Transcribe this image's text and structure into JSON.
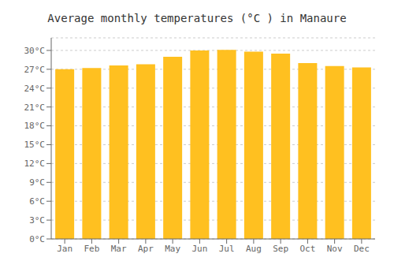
{
  "chart_data": {
    "type": "bar",
    "title": "Average monthly temperatures (°C ) in Manaure",
    "categories": [
      "Jan",
      "Feb",
      "Mar",
      "Apr",
      "May",
      "Jun",
      "Jul",
      "Aug",
      "Sep",
      "Oct",
      "Nov",
      "Dec"
    ],
    "values": [
      27.0,
      27.2,
      27.6,
      27.8,
      29.0,
      30.0,
      30.1,
      29.8,
      29.5,
      28.0,
      27.5,
      27.3
    ],
    "color": "#FFC020",
    "ylim": [
      0,
      32
    ],
    "yticks": [
      {
        "value": 0,
        "label": "0°C"
      },
      {
        "value": 3,
        "label": "3°C"
      },
      {
        "value": 6,
        "label": "6°C"
      },
      {
        "value": 9,
        "label": "9°C"
      },
      {
        "value": 12,
        "label": "12°C"
      },
      {
        "value": 15,
        "label": "15°C"
      },
      {
        "value": 18,
        "label": "18°C"
      },
      {
        "value": 21,
        "label": "21°C"
      },
      {
        "value": 24,
        "label": "24°C"
      },
      {
        "value": 27,
        "label": "27°C"
      },
      {
        "value": 30,
        "label": "30°C"
      }
    ],
    "grid": true
  }
}
